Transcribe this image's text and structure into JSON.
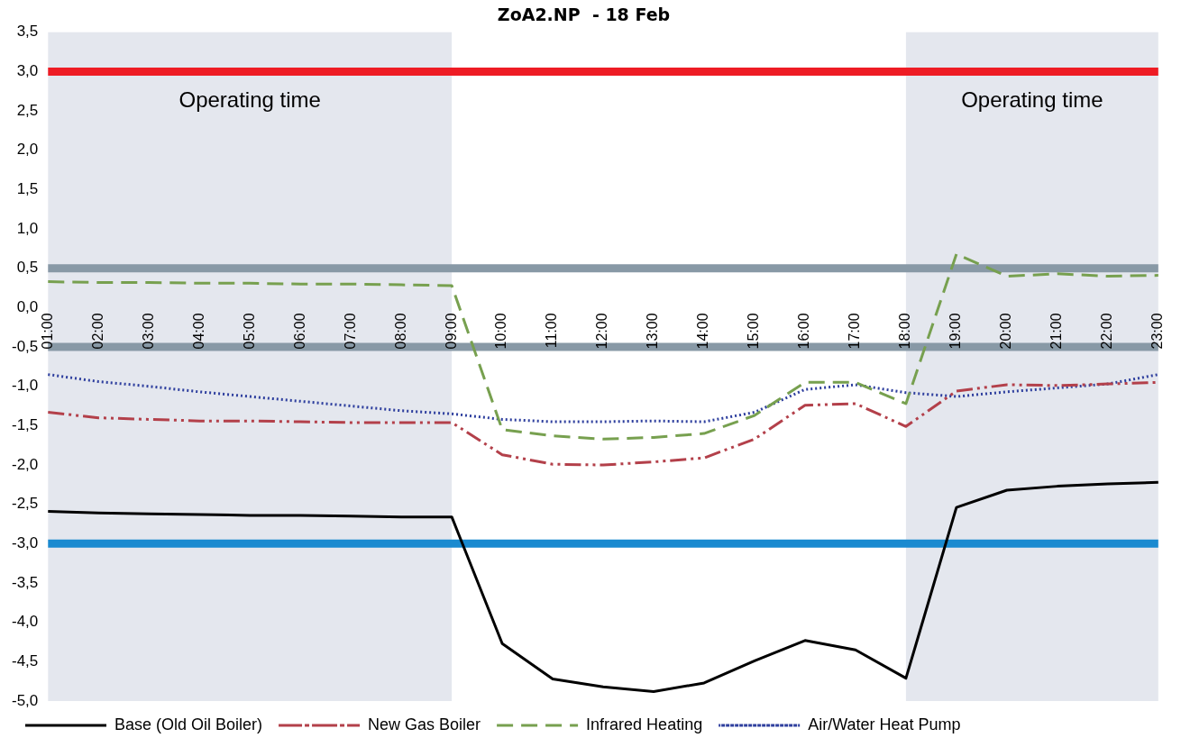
{
  "chart_data": {
    "type": "line",
    "title": "ZoA2.NP  - 18 Feb",
    "categories": [
      "01:00",
      "02:00",
      "03:00",
      "04:00",
      "05:00",
      "06:00",
      "07:00",
      "08:00",
      "09:00",
      "10:00",
      "11:00",
      "12:00",
      "13:00",
      "14:00",
      "15:00",
      "16:00",
      "17:00",
      "18:00",
      "19:00",
      "20:00",
      "21:00",
      "22:00",
      "23:00"
    ],
    "series": [
      {
        "name": "Base (Old Oil Boiler)",
        "color": "#000000",
        "line_style": "solid",
        "values": [
          -2.59,
          -2.61,
          -2.62,
          -2.63,
          -2.64,
          -2.64,
          -2.65,
          -2.66,
          -2.66,
          -4.27,
          -4.72,
          -4.82,
          -4.88,
          -4.77,
          -4.49,
          -4.23,
          -4.35,
          -4.71,
          -2.54,
          -2.32,
          -2.27,
          -2.24,
          -2.22
        ]
      },
      {
        "name": "New Gas Boiler",
        "color": "#b3404a",
        "line_style": "dashdotdot",
        "values": [
          -1.33,
          -1.4,
          -1.42,
          -1.44,
          -1.44,
          -1.45,
          -1.46,
          -1.46,
          -1.46,
          -1.87,
          -1.99,
          -2.0,
          -1.96,
          -1.91,
          -1.67,
          -1.24,
          -1.22,
          -1.51,
          -1.06,
          -0.98,
          -0.99,
          -0.97,
          -0.95
        ]
      },
      {
        "name": "Infrared Heating",
        "color": "#77a04f",
        "line_style": "dashed",
        "values": [
          0.33,
          0.32,
          0.32,
          0.31,
          0.31,
          0.3,
          0.3,
          0.29,
          0.28,
          -1.55,
          -1.63,
          -1.67,
          -1.65,
          -1.6,
          -1.37,
          -0.95,
          -0.95,
          -1.22,
          0.68,
          0.4,
          0.43,
          0.4,
          0.41
        ]
      },
      {
        "name": "Air/Water Heat Pump",
        "color": "#2e3f9e",
        "line_style": "dotted",
        "values": [
          -0.85,
          -0.94,
          -1.0,
          -1.07,
          -1.13,
          -1.19,
          -1.25,
          -1.31,
          -1.35,
          -1.42,
          -1.45,
          -1.45,
          -1.44,
          -1.45,
          -1.33,
          -1.04,
          -0.98,
          -1.08,
          -1.13,
          -1.07,
          -1.02,
          -0.97,
          -0.85
        ]
      }
    ],
    "ylim": [
      -5,
      3.5
    ],
    "yticks": [
      {
        "value": -5,
        "label": "-5,0"
      },
      {
        "value": -4.5,
        "label": "-4,5"
      },
      {
        "value": -4,
        "label": "-4,0"
      },
      {
        "value": -3.5,
        "label": "-3,5"
      },
      {
        "value": -3,
        "label": "-3,0"
      },
      {
        "value": -2.5,
        "label": "-2,5"
      },
      {
        "value": -2,
        "label": "-2,0"
      },
      {
        "value": -1.5,
        "label": "-1,5"
      },
      {
        "value": -1,
        "label": "-1,0"
      },
      {
        "value": -0.5,
        "label": "-0,5"
      },
      {
        "value": 0,
        "label": "0,0"
      },
      {
        "value": 0.5,
        "label": "0,5"
      },
      {
        "value": 1,
        "label": "1,0"
      },
      {
        "value": 1.5,
        "label": "1,5"
      },
      {
        "value": 2,
        "label": "2,0"
      },
      {
        "value": 2.5,
        "label": "2,5"
      },
      {
        "value": 3,
        "label": "3,0"
      },
      {
        "value": 3.5,
        "label": "3,5"
      }
    ],
    "ref_lines": [
      {
        "axis": "y",
        "value": 3,
        "color": "#ee1c24"
      },
      {
        "axis": "y",
        "value": 0.5,
        "color": "#8899a6"
      },
      {
        "axis": "y",
        "value": -0.5,
        "color": "#8899a6"
      },
      {
        "axis": "y",
        "value": -3,
        "color": "#1a8ad0"
      }
    ],
    "bands": [
      {
        "axis": "x",
        "from": "01:00",
        "to": "09:00",
        "label": "Operating time",
        "color": "#e4e7ee"
      },
      {
        "axis": "x",
        "from": "18:00",
        "to": "23:00",
        "label": "Operating time",
        "color": "#e4e7ee"
      }
    ],
    "grid": false,
    "legend": "bottom",
    "marker": "none"
  }
}
